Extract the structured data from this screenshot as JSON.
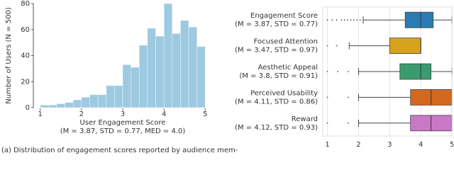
{
  "chart_data": [
    {
      "type": "histogram",
      "xlabel": "User Engagement Score",
      "subtitle": "(M = 3.87, STD = 0.77, MED = 4.0)",
      "ylabel": "Number of Users (N = 500)",
      "caption": "(a) Distribution of engagement scores reported by audience mem-",
      "bins": [
        1.0,
        1.2,
        1.4,
        1.6,
        1.8,
        2.0,
        2.2,
        2.4,
        2.6,
        2.8,
        3.0,
        3.2,
        3.4,
        3.6,
        3.8,
        4.0,
        4.2,
        4.4,
        4.6,
        4.8,
        5.0
      ],
      "values": [
        2,
        2,
        3,
        4,
        6,
        8,
        10,
        10,
        17,
        17,
        33,
        31,
        48,
        61,
        55,
        80,
        57,
        67,
        62,
        47
      ],
      "color": "#9ecae1",
      "xlim": [
        0.85,
        5.15
      ],
      "xticks": [
        1,
        2,
        3,
        4,
        5
      ],
      "ylim": [
        0,
        80
      ],
      "yticks": [
        0,
        20,
        40,
        60,
        80
      ]
    },
    {
      "type": "box",
      "xlim": [
        0.85,
        5.0
      ],
      "xticks": [
        1,
        2,
        3,
        4,
        5
      ],
      "grid": true,
      "boxes": [
        {
          "name": "Engagement Score",
          "note": "(M = 3.87, STD = 0.77)",
          "color": "#2b7bb3",
          "whislo": 2.15,
          "q1": 3.5,
          "med": 4.0,
          "q3": 4.4,
          "whishi": 5.0,
          "fliers": [
            1.0,
            1.15,
            1.3,
            1.45,
            1.55,
            1.65,
            1.75,
            1.85,
            1.95,
            2.05
          ]
        },
        {
          "name": "Focused Attention",
          "note": "(M = 3.47, STD = 0.97)",
          "color": "#d9a21b",
          "whislo": 1.7,
          "q1": 3.0,
          "med": 4.0,
          "q3": 4.0,
          "whishi": 4.0,
          "fliers": [
            1.0,
            1.3
          ]
        },
        {
          "name": "Aesthetic Appeal",
          "note": "(M = 3.8, STD = 0.91)",
          "color": "#3a9c6e",
          "whislo": 2.0,
          "q1": 3.33,
          "med": 4.0,
          "q3": 4.33,
          "whishi": 5.0,
          "fliers": [
            1.0,
            1.33,
            1.67
          ]
        },
        {
          "name": "Perceived Usability",
          "note": "(M = 4.11, STD = 0.86)",
          "color": "#d2691e",
          "whislo": 2.0,
          "q1": 3.67,
          "med": 4.33,
          "q3": 5.0,
          "whishi": 5.0,
          "fliers": [
            1.0,
            1.67
          ]
        },
        {
          "name": "Reward",
          "note": "(M = 4.12, STD = 0.93)",
          "color": "#c978c8",
          "whislo": 2.0,
          "q1": 3.67,
          "med": 4.33,
          "q3": 5.0,
          "whishi": 5.0,
          "fliers": [
            1.0,
            1.67
          ]
        }
      ]
    }
  ]
}
